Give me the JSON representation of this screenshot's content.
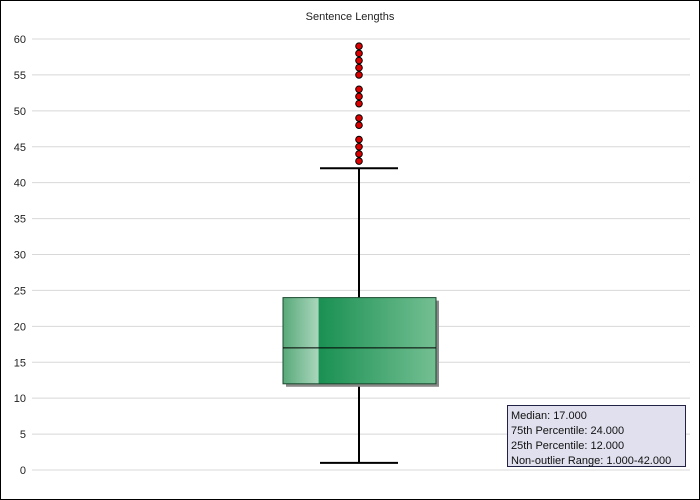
{
  "chart_data": {
    "type": "box",
    "title": "Sentence Lengths",
    "xlabel": "",
    "ylabel": "",
    "ylim": [
      0,
      60
    ],
    "yticks": [
      0,
      5,
      10,
      15,
      20,
      25,
      30,
      35,
      40,
      45,
      50,
      55,
      60
    ],
    "grid": true,
    "box": {
      "median": 17,
      "q1": 12,
      "q3": 24,
      "whisker_low": 1,
      "whisker_high": 42
    },
    "outliers": [
      43,
      44,
      45,
      46,
      48,
      49,
      51,
      52,
      53,
      55,
      56,
      57,
      58,
      59
    ],
    "colors": {
      "box": "#1a9052",
      "outlier": "#dd0000",
      "grid": "#d8d8d8"
    },
    "legend": {
      "position": "bottom-right",
      "lines": [
        "Median: 17.000",
        "75th Percentile: 24.000",
        "25th Percentile: 12.000",
        "Non-outlier Range: 1.000-42.000"
      ]
    }
  }
}
